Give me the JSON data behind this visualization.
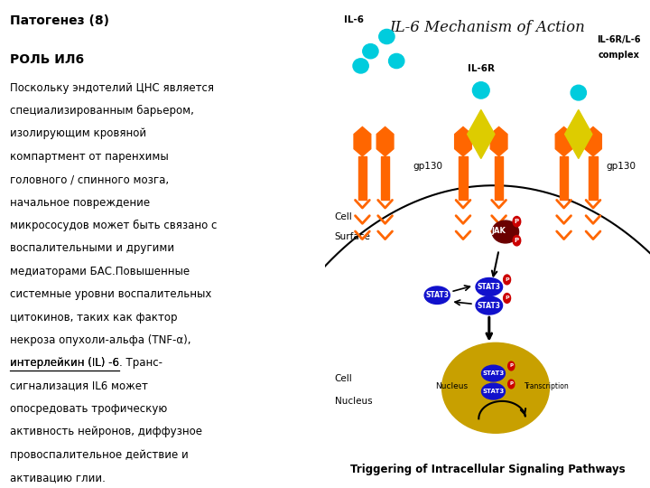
{
  "title": "Патогенез (8)",
  "heading": "РОЛЬ ИЛ6",
  "body_lines": [
    "Поскольку эндотелий ЦНС является",
    "специализированным барьером,",
    "изолирующим кровяной",
    "компартмент от паренхимы",
    "головного / спинного мозга,",
    "начальное повреждение",
    "микрососудов может быть связано с",
    "воспалительными и другими",
    "медиаторами БАС.Повышенные",
    "системные уровни воспалительных",
    "цитокинов, таких как фактор",
    "некроза опухоли-альфа (TNF-α),",
    "интерлейкин (IL) -6. Транс-",
    "сигнализация IL6 может",
    "опосредовать трофическую",
    "активность нейронов, диффузное",
    "провоспалительное действие и",
    "активацию глии."
  ],
  "underline_line_idx": 12,
  "underline_text": "интерлейкин (IL) -6",
  "bg_color": "#ffffff",
  "title_color": "#000000",
  "heading_color": "#000000",
  "body_color": "#000000",
  "diagram_title": "IL-6 Mechanism of Action",
  "diagram_footer": "Triggering of Intracellular Signaling Pathways",
  "orange": "#FF6600",
  "cyan": "#00CCDD",
  "yellow": "#DDCC00",
  "blue": "#1111CC",
  "red": "#CC0000",
  "gold": "#C8A000",
  "dark_red": "#6B0000"
}
